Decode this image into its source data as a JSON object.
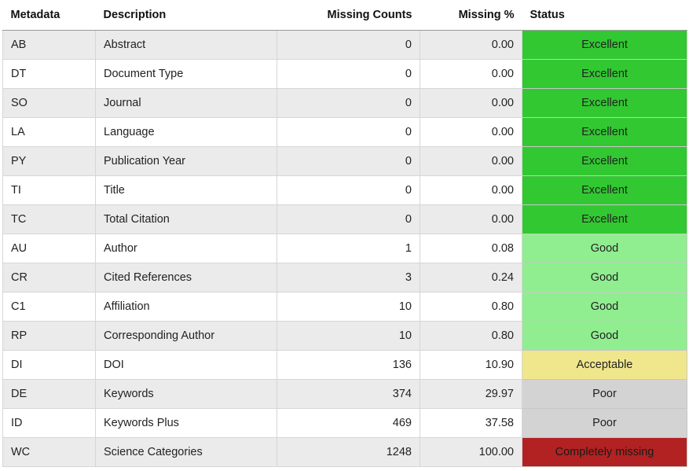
{
  "table": {
    "headers": {
      "metadata": "Metadata",
      "description": "Description",
      "missing_counts": "Missing Counts",
      "missing_pct": "Missing %",
      "status": "Status"
    },
    "status_colors": {
      "Excellent": "#32c832",
      "Good": "#90ee90",
      "Acceptable": "#f0e68c",
      "Poor": "#d3d3d3",
      "Completely missing": "#b22222"
    },
    "rows": [
      {
        "metadata": "AB",
        "description": "Abstract",
        "missing_counts": "0",
        "missing_pct": "0.00",
        "status": "Excellent"
      },
      {
        "metadata": "DT",
        "description": "Document Type",
        "missing_counts": "0",
        "missing_pct": "0.00",
        "status": "Excellent"
      },
      {
        "metadata": "SO",
        "description": "Journal",
        "missing_counts": "0",
        "missing_pct": "0.00",
        "status": "Excellent"
      },
      {
        "metadata": "LA",
        "description": "Language",
        "missing_counts": "0",
        "missing_pct": "0.00",
        "status": "Excellent"
      },
      {
        "metadata": "PY",
        "description": "Publication Year",
        "missing_counts": "0",
        "missing_pct": "0.00",
        "status": "Excellent"
      },
      {
        "metadata": "TI",
        "description": "Title",
        "missing_counts": "0",
        "missing_pct": "0.00",
        "status": "Excellent"
      },
      {
        "metadata": "TC",
        "description": "Total Citation",
        "missing_counts": "0",
        "missing_pct": "0.00",
        "status": "Excellent"
      },
      {
        "metadata": "AU",
        "description": "Author",
        "missing_counts": "1",
        "missing_pct": "0.08",
        "status": "Good"
      },
      {
        "metadata": "CR",
        "description": "Cited References",
        "missing_counts": "3",
        "missing_pct": "0.24",
        "status": "Good"
      },
      {
        "metadata": "C1",
        "description": "Affiliation",
        "missing_counts": "10",
        "missing_pct": "0.80",
        "status": "Good"
      },
      {
        "metadata": "RP",
        "description": "Corresponding Author",
        "missing_counts": "10",
        "missing_pct": "0.80",
        "status": "Good"
      },
      {
        "metadata": "DI",
        "description": "DOI",
        "missing_counts": "136",
        "missing_pct": "10.90",
        "status": "Acceptable"
      },
      {
        "metadata": "DE",
        "description": "Keywords",
        "missing_counts": "374",
        "missing_pct": "29.97",
        "status": "Poor"
      },
      {
        "metadata": "ID",
        "description": "Keywords Plus",
        "missing_counts": "469",
        "missing_pct": "37.58",
        "status": "Poor"
      },
      {
        "metadata": "WC",
        "description": "Science Categories",
        "missing_counts": "1248",
        "missing_pct": "100.00",
        "status": "Completely missing"
      }
    ]
  }
}
